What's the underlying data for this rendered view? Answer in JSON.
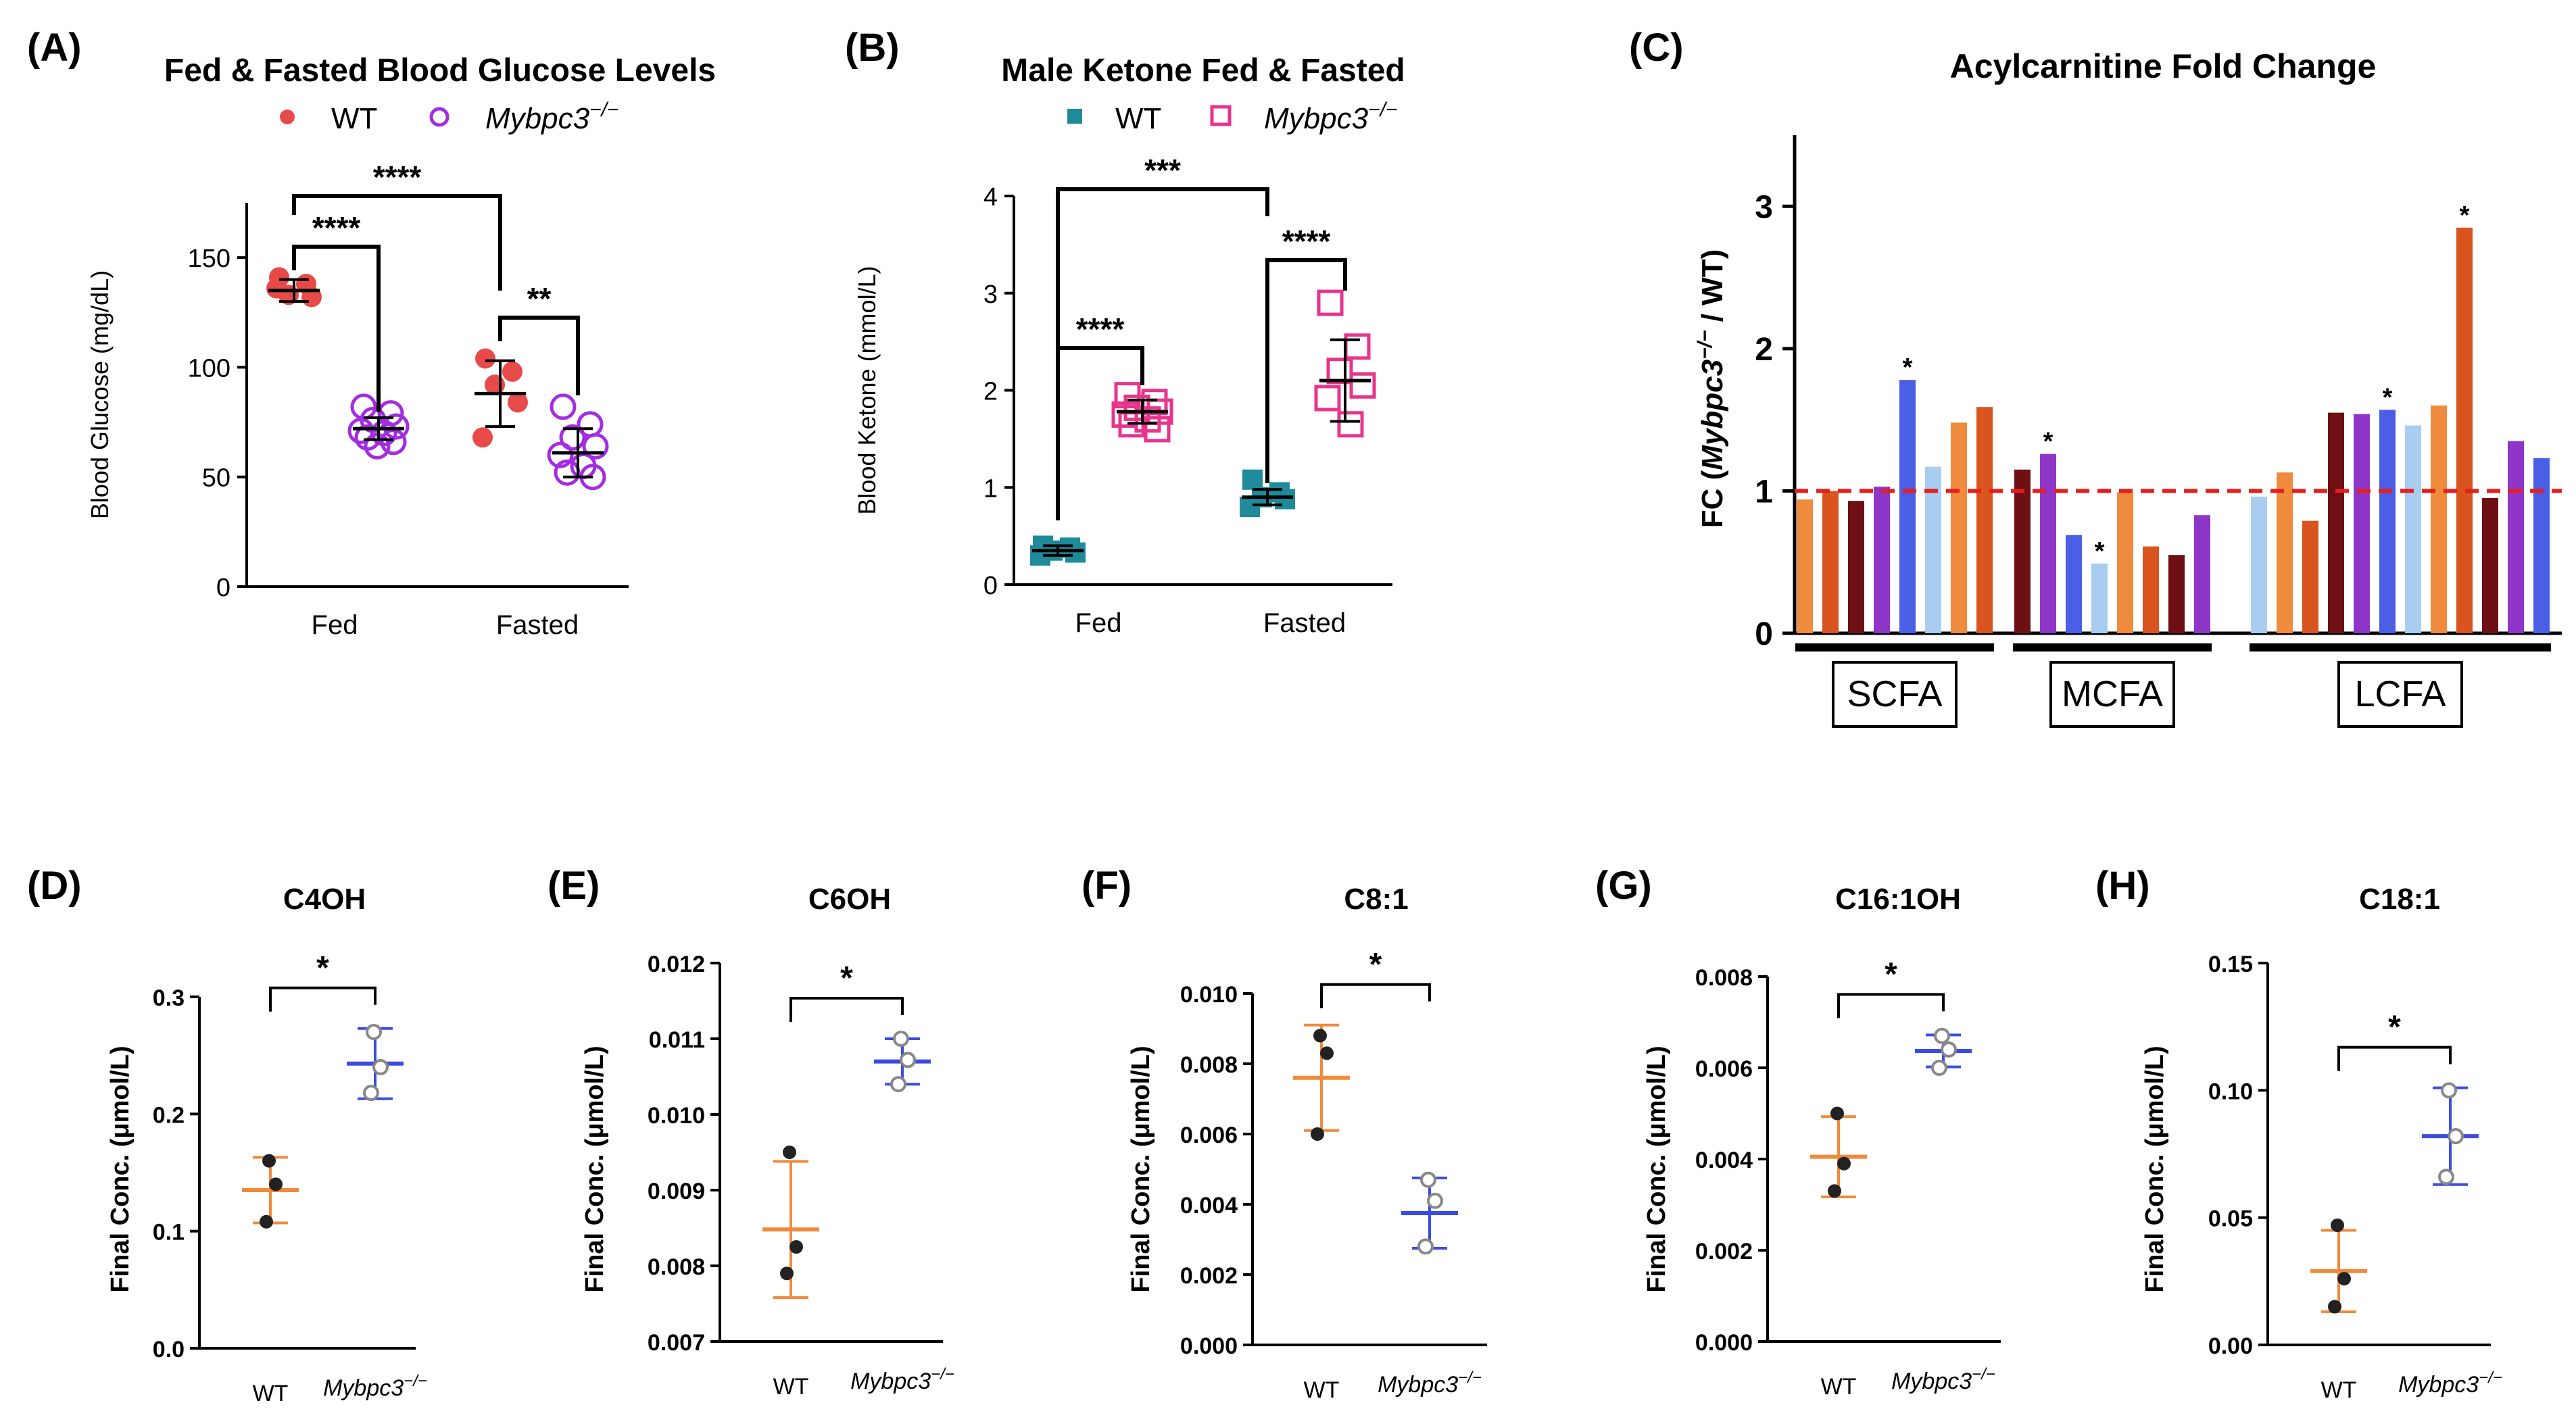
{
  "colors": {
    "wt_red": "#e84a4a",
    "ko_purple": "#a32de0",
    "wt_teal": "#1e8a9a",
    "ko_pink": "#e8348c",
    "wt_orange": "#f08a3c",
    "ko_blue": "#3b4de0",
    "open_gray": "#888888",
    "axis": "#000000",
    "ref_line": "#e51e1e"
  },
  "chart_data": [
    {
      "id": "A",
      "panel_label": "(A)",
      "type": "scatter",
      "title": "Fed & Fasted Blood Glucose Levels",
      "legend": [
        {
          "label": "WT",
          "marker": "filled-circle",
          "italic": false
        },
        {
          "label": "Mybpc3",
          "sup": "−/−",
          "marker": "open-circle",
          "italic": true
        }
      ],
      "ylabel": "Blood Glucose (mg/dL)",
      "ylim": [
        0,
        175
      ],
      "yticks": [
        "0",
        "50",
        "100",
        "150"
      ],
      "categories": [
        "Fed",
        "Fasted"
      ],
      "groups": [
        {
          "category": "Fed",
          "genotype": "WT",
          "mean": 135,
          "sd": 5,
          "points": [
            141,
            138,
            133,
            132,
            136
          ]
        },
        {
          "category": "Fed",
          "genotype": "KO",
          "mean": 72,
          "sd": 5,
          "points": [
            82,
            79,
            76,
            73,
            71,
            70,
            68,
            66,
            64
          ]
        },
        {
          "category": "Fasted",
          "genotype": "WT",
          "mean": 88,
          "sd": 15,
          "points": [
            104,
            98,
            92,
            84,
            68
          ]
        },
        {
          "category": "Fasted",
          "genotype": "KO",
          "mean": 61,
          "sd": 11,
          "points": [
            82,
            74,
            68,
            64,
            60,
            55,
            52,
            50
          ]
        }
      ],
      "significance": [
        {
          "label": "****",
          "from": 0,
          "to": 2
        },
        {
          "label": "****",
          "from": 0,
          "to": 1
        },
        {
          "label": "**",
          "from": 2,
          "to": 3
        }
      ]
    },
    {
      "id": "B",
      "panel_label": "(B)",
      "type": "scatter",
      "title": "Male Ketone Fed & Fasted",
      "legend": [
        {
          "label": "WT",
          "marker": "filled-square",
          "italic": false
        },
        {
          "label": "Mybpc3",
          "sup": "−/−",
          "marker": "open-square",
          "italic": true
        }
      ],
      "ylabel": "Blood Ketone (mmol/L)",
      "ylim": [
        0,
        4
      ],
      "yticks": [
        "0",
        "1",
        "2",
        "3",
        "4"
      ],
      "categories": [
        "Fed",
        "Fasted"
      ],
      "groups": [
        {
          "category": "Fed",
          "genotype": "WT",
          "mean": 0.35,
          "sd": 0.05,
          "points": [
            0.4,
            0.38,
            0.35,
            0.33,
            0.3
          ]
        },
        {
          "category": "Fed",
          "genotype": "KO",
          "mean": 1.78,
          "sd": 0.12,
          "points": [
            1.95,
            1.88,
            1.82,
            1.78,
            1.75,
            1.7,
            1.65,
            1.6
          ]
        },
        {
          "category": "Fasted",
          "genotype": "WT",
          "mean": 0.9,
          "sd": 0.08,
          "points": [
            1.08,
            0.95,
            0.9,
            0.88,
            0.8
          ]
        },
        {
          "category": "Fasted",
          "genotype": "KO",
          "mean": 2.1,
          "sd": 0.42,
          "points": [
            2.9,
            2.45,
            2.2,
            2.05,
            1.92,
            1.65
          ]
        }
      ],
      "significance": [
        {
          "label": "***",
          "from": 0,
          "to": 2
        },
        {
          "label": "****",
          "from": 0,
          "to": 1
        },
        {
          "label": "****",
          "from": 2,
          "to": 3
        }
      ]
    },
    {
      "id": "C",
      "panel_label": "(C)",
      "type": "bar",
      "title": "Acylcarnitine Fold Change",
      "ylabel": "FC (Mybpc3⁻/⁻ / WT)",
      "ylabel_parts": {
        "pre": "FC (",
        "gene": "Mybpc3",
        "sup": "−/−",
        "post": " / WT)"
      },
      "ylim": [
        0,
        3.5
      ],
      "yticks": [
        "0",
        "1",
        "2",
        "3"
      ],
      "reference_line": 1,
      "groups": [
        {
          "label": "SCFA",
          "bars": [
            {
              "value": 0.94,
              "color": "#f08a3c",
              "sig": ""
            },
            {
              "value": 1.0,
              "color": "#d9541e",
              "sig": ""
            },
            {
              "value": 0.93,
              "color": "#6e0f14",
              "sig": ""
            },
            {
              "value": 1.03,
              "color": "#8e36c8",
              "sig": ""
            },
            {
              "value": 1.78,
              "color": "#4a5ee6",
              "sig": "*"
            },
            {
              "value": 1.17,
              "color": "#a8cdf0",
              "sig": ""
            },
            {
              "value": 1.48,
              "color": "#f08a3c",
              "sig": ""
            },
            {
              "value": 1.59,
              "color": "#d9541e",
              "sig": ""
            }
          ]
        },
        {
          "label": "MCFA",
          "bars": [
            {
              "value": 1.15,
              "color": "#6e0f14",
              "sig": ""
            },
            {
              "value": 1.26,
              "color": "#8e36c8",
              "sig": "*"
            },
            {
              "value": 0.69,
              "color": "#4a5ee6",
              "sig": ""
            },
            {
              "value": 0.49,
              "color": "#a8cdf0",
              "sig": "*"
            },
            {
              "value": 0.99,
              "color": "#f08a3c",
              "sig": ""
            },
            {
              "value": 0.61,
              "color": "#d9541e",
              "sig": ""
            },
            {
              "value": 0.55,
              "color": "#6e0f14",
              "sig": ""
            },
            {
              "value": 0.83,
              "color": "#8e36c8",
              "sig": ""
            }
          ]
        },
        {
          "label": "LCFA",
          "bars": [
            {
              "value": 0.96,
              "color": "#a8cdf0",
              "sig": ""
            },
            {
              "value": 1.13,
              "color": "#f08a3c",
              "sig": ""
            },
            {
              "value": 0.79,
              "color": "#d9541e",
              "sig": ""
            },
            {
              "value": 1.55,
              "color": "#6e0f14",
              "sig": ""
            },
            {
              "value": 1.54,
              "color": "#8e36c8",
              "sig": ""
            },
            {
              "value": 1.57,
              "color": "#4a5ee6",
              "sig": "*"
            },
            {
              "value": 1.46,
              "color": "#a8cdf0",
              "sig": ""
            },
            {
              "value": 1.6,
              "color": "#f08a3c",
              "sig": ""
            },
            {
              "value": 2.85,
              "color": "#d9541e",
              "sig": "*"
            },
            {
              "value": 0.95,
              "color": "#6e0f14",
              "sig": ""
            },
            {
              "value": 1.35,
              "color": "#8e36c8",
              "sig": ""
            },
            {
              "value": 1.23,
              "color": "#4a5ee6",
              "sig": ""
            }
          ]
        }
      ]
    },
    {
      "id": "D",
      "panel_label": "(D)",
      "type": "scatter",
      "title": "C4OH",
      "ylabel": "Final Conc. (μmol/L)",
      "ylim": [
        0,
        0.3
      ],
      "yticks": [
        "0.0",
        "0.1",
        "0.2",
        "0.3"
      ],
      "categories": [
        "WT",
        "Mybpc3"
      ],
      "ko_sup": "−/−",
      "groups": [
        {
          "genotype": "WT",
          "mean": 0.135,
          "sd": 0.028,
          "points": [
            0.16,
            0.14,
            0.108
          ]
        },
        {
          "genotype": "KO",
          "mean": 0.243,
          "sd": 0.03,
          "points": [
            0.27,
            0.24,
            0.218
          ]
        }
      ],
      "significance": "*"
    },
    {
      "id": "E",
      "panel_label": "(E)",
      "type": "scatter",
      "title": "C6OH",
      "ylabel": "Final Conc. (μmol/L)",
      "ylim": [
        0.007,
        0.012
      ],
      "yticks": [
        "0.007",
        "0.008",
        "0.009",
        "0.010",
        "0.011",
        "0.012"
      ],
      "categories": [
        "WT",
        "Mybpc3"
      ],
      "ko_sup": "−/−",
      "groups": [
        {
          "genotype": "WT",
          "mean": 0.00848,
          "sd": 0.0009,
          "points": [
            0.0095,
            0.00825,
            0.0079
          ]
        },
        {
          "genotype": "KO",
          "mean": 0.0107,
          "sd": 0.0003,
          "points": [
            0.011,
            0.01072,
            0.0104
          ]
        }
      ],
      "significance": "*"
    },
    {
      "id": "F",
      "panel_label": "(F)",
      "type": "scatter",
      "title": "C8:1",
      "ylabel": "Final Conc. (μmol/L)",
      "ylim": [
        0,
        0.01
      ],
      "yticks": [
        "0.000",
        "0.002",
        "0.004",
        "0.006",
        "0.008",
        "0.010"
      ],
      "categories": [
        "WT",
        "Mybpc3"
      ],
      "ko_sup": "−/−",
      "groups": [
        {
          "genotype": "WT",
          "mean": 0.0076,
          "sd": 0.0015,
          "points": [
            0.0088,
            0.0083,
            0.006
          ]
        },
        {
          "genotype": "KO",
          "mean": 0.00375,
          "sd": 0.001,
          "points": [
            0.0047,
            0.0041,
            0.0028
          ]
        }
      ],
      "significance": "*"
    },
    {
      "id": "G",
      "panel_label": "(G)",
      "type": "scatter",
      "title": "C16:1OH",
      "ylabel": "Final Conc. (μmol/L)",
      "ylim": [
        0,
        0.008
      ],
      "yticks": [
        "0.000",
        "0.002",
        "0.004",
        "0.006",
        "0.008"
      ],
      "categories": [
        "WT",
        "Mybpc3"
      ],
      "ko_sup": "−/−",
      "groups": [
        {
          "genotype": "WT",
          "mean": 0.00405,
          "sd": 0.00088,
          "points": [
            0.005,
            0.0039,
            0.0033
          ]
        },
        {
          "genotype": "KO",
          "mean": 0.00637,
          "sd": 0.00035,
          "points": [
            0.0067,
            0.0064,
            0.006
          ]
        }
      ],
      "significance": "*"
    },
    {
      "id": "H",
      "panel_label": "(H)",
      "type": "scatter",
      "title": "C18:1",
      "ylabel": "Final Conc. (μmol/L)",
      "ylim": [
        0,
        0.15
      ],
      "yticks": [
        "0.00",
        "0.05",
        "0.10",
        "0.15"
      ],
      "categories": [
        "WT",
        "Mybpc3"
      ],
      "ko_sup": "−/−",
      "groups": [
        {
          "genotype": "WT",
          "mean": 0.029,
          "sd": 0.016,
          "points": [
            0.047,
            0.026,
            0.015
          ]
        },
        {
          "genotype": "KO",
          "mean": 0.082,
          "sd": 0.019,
          "points": [
            0.1,
            0.082,
            0.066
          ]
        }
      ],
      "significance": "*"
    }
  ]
}
